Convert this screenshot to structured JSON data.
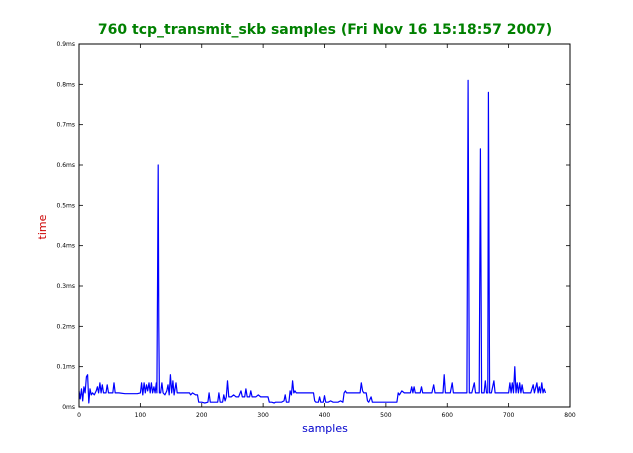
{
  "colors": {
    "title": "#008000",
    "xlabel": "#0000cc",
    "ylabel": "#cc0000",
    "line": "#0000ff",
    "axes": "#000000",
    "background": "#ffffff"
  },
  "chart_data": {
    "type": "line",
    "title": "760 tcp_transmit_skb samples (Fri Nov 16 15:18:57 2007)",
    "xlabel": "samples",
    "ylabel": "time",
    "xlim": [
      0,
      800
    ],
    "ylim": [
      0,
      0.9
    ],
    "x_ticks": [
      0,
      100,
      200,
      300,
      400,
      500,
      600,
      700,
      800
    ],
    "x_tick_labels": [
      "0",
      "100",
      "200",
      "300",
      "400",
      "500",
      "600",
      "700",
      "800"
    ],
    "y_ticks": [
      0,
      0.1,
      0.2,
      0.3,
      0.4,
      0.5,
      0.6,
      0.7,
      0.8,
      0.9
    ],
    "y_tick_labels": [
      "0ms",
      "0.1ms",
      "0.2ms",
      "0.3ms",
      "0.4ms",
      "0.5ms",
      "0.6ms",
      "0.7ms",
      "0.8ms",
      "0.9ms"
    ],
    "grid": false,
    "legend": "none",
    "series": [
      {
        "points": [
          [
            0,
            0.04
          ],
          [
            2,
            0.02
          ],
          [
            4,
            0.045
          ],
          [
            6,
            0.015
          ],
          [
            8,
            0.05
          ],
          [
            10,
            0.035
          ],
          [
            12,
            0.075
          ],
          [
            14,
            0.08
          ],
          [
            16,
            0.01
          ],
          [
            18,
            0.045
          ],
          [
            20,
            0.03
          ],
          [
            22,
            0.035
          ],
          [
            25,
            0.03
          ],
          [
            28,
            0.04
          ],
          [
            30,
            0.05
          ],
          [
            32,
            0.035
          ],
          [
            34,
            0.06
          ],
          [
            36,
            0.035
          ],
          [
            38,
            0.055
          ],
          [
            40,
            0.035
          ],
          [
            44,
            0.035
          ],
          [
            46,
            0.055
          ],
          [
            48,
            0.035
          ],
          [
            52,
            0.035
          ],
          [
            55,
            0.035
          ],
          [
            57,
            0.06
          ],
          [
            59,
            0.035
          ],
          [
            65,
            0.035
          ],
          [
            75,
            0.033
          ],
          [
            85,
            0.033
          ],
          [
            95,
            0.033
          ],
          [
            100,
            0.035
          ],
          [
            102,
            0.06
          ],
          [
            104,
            0.03
          ],
          [
            106,
            0.06
          ],
          [
            108,
            0.035
          ],
          [
            110,
            0.055
          ],
          [
            112,
            0.04
          ],
          [
            114,
            0.06
          ],
          [
            116,
            0.035
          ],
          [
            118,
            0.06
          ],
          [
            120,
            0.035
          ],
          [
            122,
            0.05
          ],
          [
            124,
            0.035
          ],
          [
            126,
            0.06
          ],
          [
            127,
            0.035
          ],
          [
            128,
            0.33
          ],
          [
            129,
            0.6
          ],
          [
            130,
            0.2
          ],
          [
            131,
            0.035
          ],
          [
            133,
            0.035
          ],
          [
            135,
            0.06
          ],
          [
            137,
            0.035
          ],
          [
            140,
            0.03
          ],
          [
            143,
            0.04
          ],
          [
            145,
            0.055
          ],
          [
            147,
            0.03
          ],
          [
            149,
            0.08
          ],
          [
            151,
            0.035
          ],
          [
            153,
            0.065
          ],
          [
            155,
            0.03
          ],
          [
            158,
            0.06
          ],
          [
            160,
            0.035
          ],
          [
            165,
            0.035
          ],
          [
            170,
            0.035
          ],
          [
            175,
            0.035
          ],
          [
            180,
            0.035
          ],
          [
            182,
            0.03
          ],
          [
            185,
            0.035
          ],
          [
            190,
            0.03
          ],
          [
            193,
            0.03
          ],
          [
            195,
            0.012
          ],
          [
            200,
            0.012
          ],
          [
            205,
            0.01
          ],
          [
            210,
            0.012
          ],
          [
            212,
            0.035
          ],
          [
            214,
            0.012
          ],
          [
            220,
            0.012
          ],
          [
            226,
            0.012
          ],
          [
            228,
            0.035
          ],
          [
            230,
            0.012
          ],
          [
            234,
            0.012
          ],
          [
            236,
            0.03
          ],
          [
            238,
            0.015
          ],
          [
            240,
            0.025
          ],
          [
            242,
            0.065
          ],
          [
            244,
            0.025
          ],
          [
            248,
            0.025
          ],
          [
            252,
            0.03
          ],
          [
            256,
            0.025
          ],
          [
            260,
            0.025
          ],
          [
            264,
            0.04
          ],
          [
            266,
            0.025
          ],
          [
            270,
            0.025
          ],
          [
            272,
            0.045
          ],
          [
            274,
            0.025
          ],
          [
            278,
            0.025
          ],
          [
            280,
            0.04
          ],
          [
            282,
            0.025
          ],
          [
            288,
            0.025
          ],
          [
            292,
            0.03
          ],
          [
            296,
            0.025
          ],
          [
            300,
            0.025
          ],
          [
            304,
            0.025
          ],
          [
            308,
            0.025
          ],
          [
            310,
            0.012
          ],
          [
            314,
            0.012
          ],
          [
            318,
            0.01
          ],
          [
            320,
            0.012
          ],
          [
            326,
            0.012
          ],
          [
            330,
            0.012
          ],
          [
            334,
            0.015
          ],
          [
            336,
            0.03
          ],
          [
            338,
            0.012
          ],
          [
            342,
            0.012
          ],
          [
            344,
            0.04
          ],
          [
            346,
            0.03
          ],
          [
            348,
            0.065
          ],
          [
            350,
            0.035
          ],
          [
            352,
            0.04
          ],
          [
            354,
            0.035
          ],
          [
            360,
            0.035
          ],
          [
            366,
            0.035
          ],
          [
            372,
            0.035
          ],
          [
            378,
            0.035
          ],
          [
            382,
            0.035
          ],
          [
            384,
            0.015
          ],
          [
            386,
            0.012
          ],
          [
            390,
            0.012
          ],
          [
            392,
            0.025
          ],
          [
            394,
            0.012
          ],
          [
            398,
            0.012
          ],
          [
            400,
            0.028
          ],
          [
            402,
            0.012
          ],
          [
            406,
            0.012
          ],
          [
            410,
            0.015
          ],
          [
            414,
            0.012
          ],
          [
            418,
            0.012
          ],
          [
            422,
            0.012
          ],
          [
            426,
            0.015
          ],
          [
            430,
            0.012
          ],
          [
            432,
            0.035
          ],
          [
            434,
            0.04
          ],
          [
            436,
            0.035
          ],
          [
            440,
            0.035
          ],
          [
            445,
            0.035
          ],
          [
            450,
            0.035
          ],
          [
            455,
            0.035
          ],
          [
            458,
            0.035
          ],
          [
            460,
            0.06
          ],
          [
            462,
            0.04
          ],
          [
            464,
            0.035
          ],
          [
            468,
            0.035
          ],
          [
            470,
            0.015
          ],
          [
            472,
            0.012
          ],
          [
            476,
            0.025
          ],
          [
            478,
            0.012
          ],
          [
            482,
            0.012
          ],
          [
            488,
            0.012
          ],
          [
            494,
            0.012
          ],
          [
            500,
            0.012
          ],
          [
            506,
            0.012
          ],
          [
            512,
            0.012
          ],
          [
            518,
            0.012
          ],
          [
            520,
            0.035
          ],
          [
            522,
            0.03
          ],
          [
            526,
            0.04
          ],
          [
            530,
            0.035
          ],
          [
            535,
            0.035
          ],
          [
            540,
            0.035
          ],
          [
            542,
            0.05
          ],
          [
            544,
            0.035
          ],
          [
            546,
            0.05
          ],
          [
            548,
            0.035
          ],
          [
            552,
            0.035
          ],
          [
            556,
            0.035
          ],
          [
            558,
            0.05
          ],
          [
            560,
            0.035
          ],
          [
            565,
            0.035
          ],
          [
            570,
            0.035
          ],
          [
            575,
            0.035
          ],
          [
            578,
            0.055
          ],
          [
            580,
            0.035
          ],
          [
            585,
            0.035
          ],
          [
            590,
            0.035
          ],
          [
            593,
            0.035
          ],
          [
            595,
            0.08
          ],
          [
            597,
            0.035
          ],
          [
            600,
            0.035
          ],
          [
            605,
            0.035
          ],
          [
            608,
            0.06
          ],
          [
            610,
            0.035
          ],
          [
            615,
            0.035
          ],
          [
            620,
            0.035
          ],
          [
            625,
            0.035
          ],
          [
            628,
            0.035
          ],
          [
            630,
            0.035
          ],
          [
            632,
            0.035
          ],
          [
            634,
            0.81
          ],
          [
            636,
            0.035
          ],
          [
            640,
            0.035
          ],
          [
            644,
            0.06
          ],
          [
            646,
            0.035
          ],
          [
            650,
            0.035
          ],
          [
            652,
            0.035
          ],
          [
            654,
            0.64
          ],
          [
            656,
            0.035
          ],
          [
            660,
            0.035
          ],
          [
            662,
            0.065
          ],
          [
            664,
            0.035
          ],
          [
            666,
            0.035
          ],
          [
            667,
            0.78
          ],
          [
            669,
            0.035
          ],
          [
            672,
            0.035
          ],
          [
            676,
            0.065
          ],
          [
            678,
            0.035
          ],
          [
            682,
            0.035
          ],
          [
            685,
            0.035
          ],
          [
            690,
            0.035
          ],
          [
            695,
            0.035
          ],
          [
            700,
            0.035
          ],
          [
            702,
            0.06
          ],
          [
            704,
            0.035
          ],
          [
            706,
            0.06
          ],
          [
            708,
            0.035
          ],
          [
            710,
            0.1
          ],
          [
            712,
            0.035
          ],
          [
            714,
            0.06
          ],
          [
            716,
            0.035
          ],
          [
            718,
            0.06
          ],
          [
            720,
            0.035
          ],
          [
            722,
            0.055
          ],
          [
            724,
            0.035
          ],
          [
            728,
            0.035
          ],
          [
            732,
            0.035
          ],
          [
            736,
            0.035
          ],
          [
            740,
            0.055
          ],
          [
            742,
            0.035
          ],
          [
            746,
            0.06
          ],
          [
            748,
            0.035
          ],
          [
            750,
            0.05
          ],
          [
            752,
            0.035
          ],
          [
            754,
            0.06
          ],
          [
            756,
            0.035
          ],
          [
            758,
            0.045
          ],
          [
            760,
            0.035
          ]
        ]
      }
    ]
  }
}
